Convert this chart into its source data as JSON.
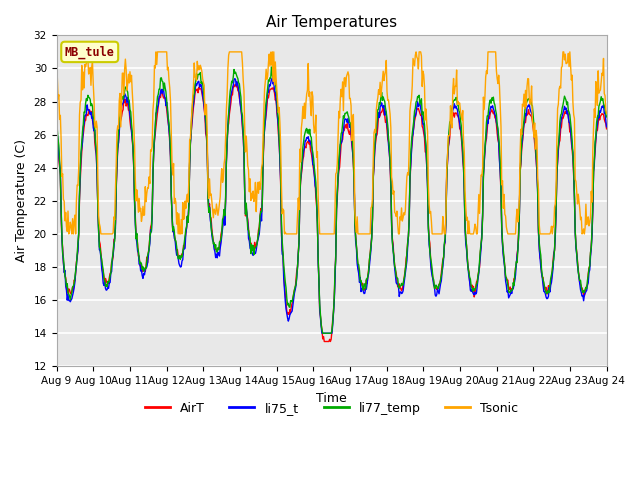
{
  "title": "Air Temperatures",
  "xlabel": "Time",
  "ylabel": "Air Temperature (C)",
  "ylim": [
    12,
    32
  ],
  "yticks": [
    12,
    14,
    16,
    18,
    20,
    22,
    24,
    26,
    28,
    30,
    32
  ],
  "xtick_labels": [
    "Aug 9",
    "Aug 10",
    "Aug 11",
    "Aug 12",
    "Aug 13",
    "Aug 14",
    "Aug 15",
    "Aug 16",
    "Aug 17",
    "Aug 18",
    "Aug 19",
    "Aug 20",
    "Aug 21",
    "Aug 22",
    "Aug 23",
    "Aug 24"
  ],
  "annotation_text": "MB_tule",
  "annotation_color": "#8B0000",
  "annotation_bg": "#FFFFCC",
  "annotation_border": "#CCCC00",
  "colors": {
    "AirT": "#FF0000",
    "li75_t": "#0000FF",
    "li77_temp": "#00AA00",
    "Tsonic": "#FFA500"
  },
  "line_width": 1.0,
  "axes_bg": "#E8E8E8",
  "figure_bg": "#FFFFFF",
  "grid_color": "#FFFFFF"
}
